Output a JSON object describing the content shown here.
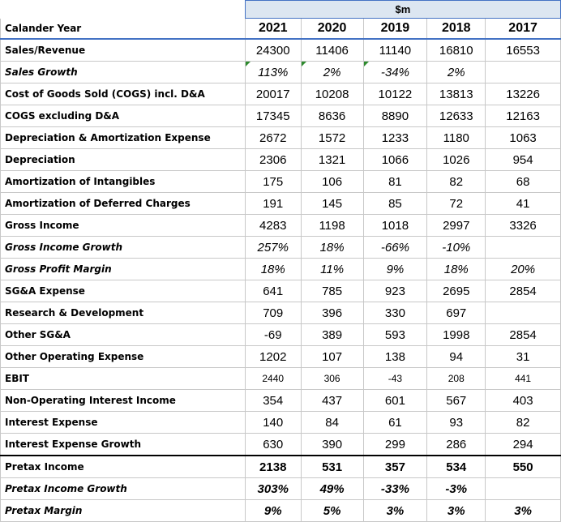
{
  "unit_label": "$m",
  "header": {
    "row_label": "Calander Year",
    "years": [
      "2021",
      "2020",
      "2019",
      "2018",
      "2017"
    ]
  },
  "rows": [
    {
      "label": "Sales/Revenue",
      "values": [
        "24300",
        "11406",
        "11140",
        "16810",
        "16553"
      ]
    },
    {
      "label": "Sales Growth",
      "values": [
        "113%",
        "2%",
        "-34%",
        "2%",
        ""
      ]
    },
    {
      "label": "Cost of Goods Sold (COGS) incl. D&A",
      "values": [
        "20017",
        "10208",
        "10122",
        "13813",
        "13226"
      ]
    },
    {
      "label": "COGS excluding D&A",
      "values": [
        "17345",
        "8636",
        "8890",
        "12633",
        "12163"
      ]
    },
    {
      "label": "Depreciation & Amortization Expense",
      "values": [
        "2672",
        "1572",
        "1233",
        "1180",
        "1063"
      ]
    },
    {
      "label": "Depreciation",
      "values": [
        "2306",
        "1321",
        "1066",
        "1026",
        "954"
      ]
    },
    {
      "label": "Amortization of Intangibles",
      "values": [
        "175",
        "106",
        "81",
        "82",
        "68"
      ]
    },
    {
      "label": "Amortization of Deferred Charges",
      "values": [
        "191",
        "145",
        "85",
        "72",
        "41"
      ]
    },
    {
      "label": "Gross Income",
      "values": [
        "4283",
        "1198",
        "1018",
        "2997",
        "3326"
      ]
    },
    {
      "label": "Gross Income Growth",
      "values": [
        "257%",
        "18%",
        "-66%",
        "-10%",
        ""
      ]
    },
    {
      "label": "Gross Profit Margin",
      "values": [
        "18%",
        "11%",
        "9%",
        "18%",
        "20%"
      ]
    },
    {
      "label": "SG&A Expense",
      "values": [
        "641",
        "785",
        "923",
        "2695",
        "2854"
      ]
    },
    {
      "label": "Research & Development",
      "values": [
        "709",
        "396",
        "330",
        "697",
        ""
      ]
    },
    {
      "label": "Other SG&A",
      "values": [
        "-69",
        "389",
        "593",
        "1998",
        "2854"
      ]
    },
    {
      "label": "Other Operating Expense",
      "values": [
        "1202",
        "107",
        "138",
        "94",
        "31"
      ]
    },
    {
      "label": "EBIT",
      "values": [
        "2440",
        "306",
        "-43",
        "208",
        "441"
      ]
    },
    {
      "label": "Non-Operating Interest Income",
      "values": [
        "354",
        "437",
        "601",
        "567",
        "403"
      ]
    },
    {
      "label": "Interest Expense",
      "values": [
        "140",
        "84",
        "61",
        "93",
        "82"
      ]
    },
    {
      "label": "Interest Expense Growth",
      "values": [
        "630",
        "390",
        "299",
        "286",
        "294"
      ]
    },
    {
      "label": "Pretax Income",
      "values": [
        "2138",
        "531",
        "357",
        "534",
        "550"
      ]
    },
    {
      "label": "Pretax Income Growth",
      "values": [
        "303%",
        "49%",
        "-33%",
        "-3%",
        ""
      ]
    },
    {
      "label": "Pretax Margin",
      "values": [
        "9%",
        "5%",
        "3%",
        "3%",
        "3%"
      ]
    }
  ]
}
